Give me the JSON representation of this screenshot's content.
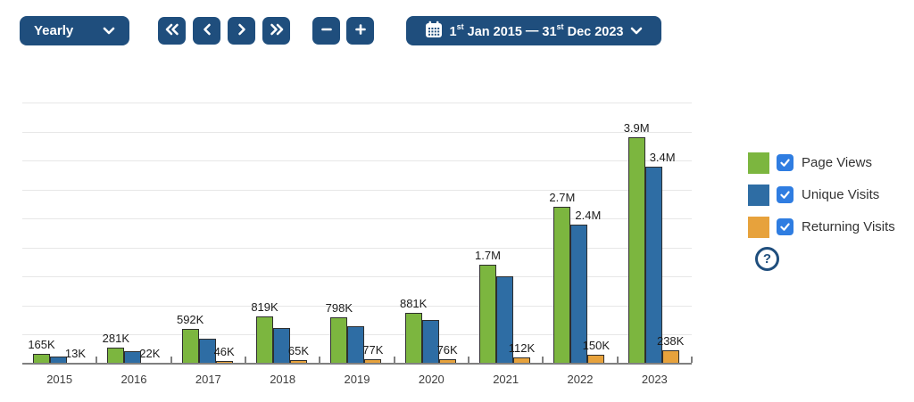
{
  "toolbar": {
    "period_select": {
      "value": "Yearly"
    },
    "nav": {
      "first_icon": "chevrons-left",
      "prev_icon": "chevron-left",
      "next_icon": "chevron-right",
      "last_icon": "chevrons-right"
    },
    "zoom_out_icon": "minus",
    "zoom_in_icon": "plus",
    "date_range": {
      "start_day": "1",
      "start_suffix": "st",
      "start_rest": "Jan 2015",
      "separator": "—",
      "end_day": "31",
      "end_suffix": "st",
      "end_rest": "Dec 2023"
    }
  },
  "legend": {
    "items": [
      {
        "label": "Page Views",
        "color": "#7CB63F",
        "checked": true
      },
      {
        "label": "Unique Visits",
        "color": "#2E6DA4",
        "checked": true
      },
      {
        "label": "Returning Visits",
        "color": "#E7A23C",
        "checked": true
      }
    ],
    "help_glyph": "?"
  },
  "colors": {
    "toolbar_navy": "#1F4E7D",
    "checkbox_blue": "#2F7DE1",
    "page_views_green": "#7CB63F",
    "unique_visits_blue": "#2E6DA4",
    "returning_visits_orange": "#E7A23C",
    "gridline_gray": "#E7E7E7",
    "axis_gray": "#808080"
  },
  "chart_data": {
    "type": "bar",
    "title": "",
    "categories": [
      "2015",
      "2016",
      "2017",
      "2018",
      "2019",
      "2020",
      "2021",
      "2022",
      "2023"
    ],
    "series": [
      {
        "name": "Page Views",
        "color": "#7CB63F",
        "values": [
          165000,
          281000,
          592000,
          819000,
          798000,
          881000,
          1700000,
          2700000,
          3900000
        ],
        "labels": [
          "165K",
          "281K",
          "592K",
          "819K",
          "798K",
          "881K",
          "1.7M",
          "2.7M",
          "3.9M"
        ]
      },
      {
        "name": "Unique Visits",
        "color": "#2E6DA4",
        "values": [
          125000,
          215000,
          430000,
          610000,
          650000,
          760000,
          1500000,
          2400000,
          3400000
        ],
        "labels": [
          null,
          null,
          null,
          null,
          null,
          null,
          null,
          "2.4M",
          "3.4M"
        ]
      },
      {
        "name": "Returning Visits",
        "color": "#E7A23C",
        "values": [
          13000,
          22000,
          46000,
          65000,
          77000,
          76000,
          112000,
          150000,
          238000
        ],
        "labels": [
          "13K",
          "22K",
          "46K",
          "65K",
          "77K",
          "76K",
          "112K",
          "150K",
          "238K"
        ]
      }
    ],
    "xlabel": "",
    "ylabel": "",
    "y_axis": {
      "min": 0,
      "max": 4580000,
      "grid_step": 500000,
      "tick_labels_visible": false
    },
    "grid": true,
    "legend_position": "right"
  }
}
